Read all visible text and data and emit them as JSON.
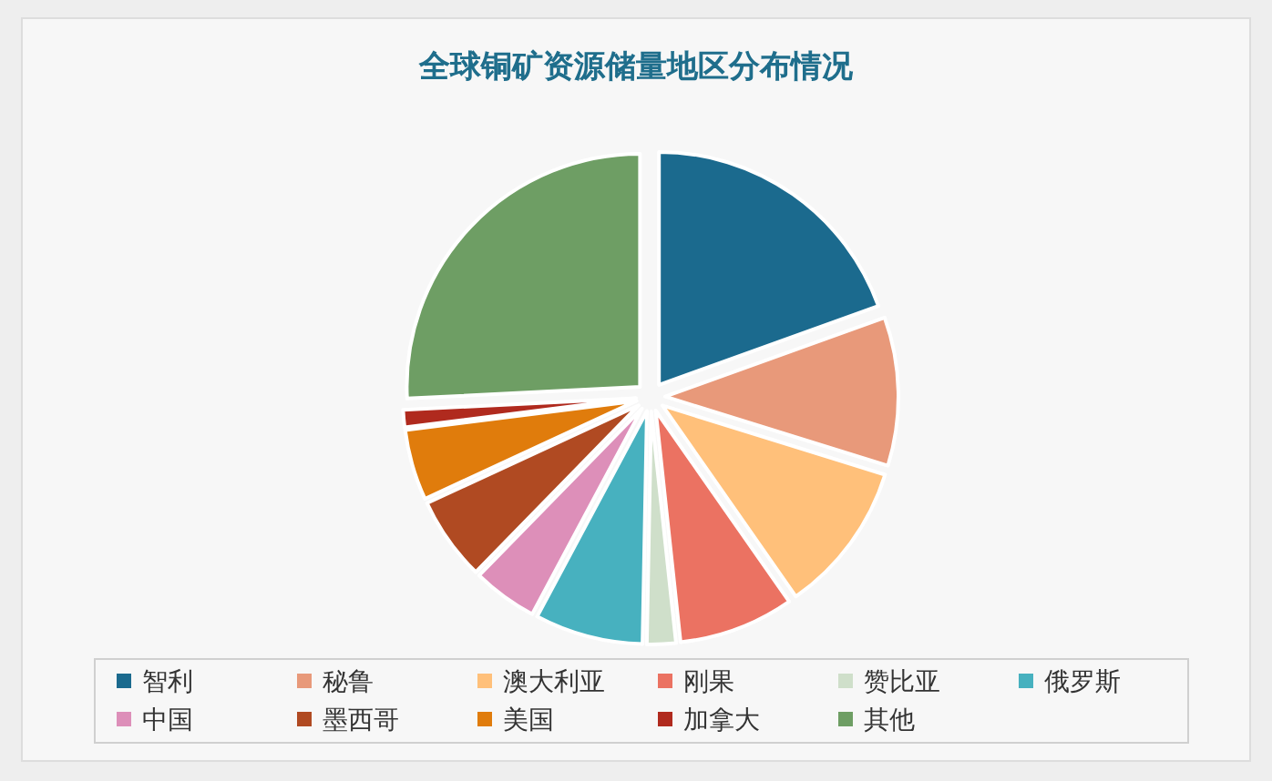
{
  "chart_data": {
    "type": "pie",
    "title": "全球铜矿资源储量地区分布情况",
    "categories": [
      "智利",
      "秘鲁",
      "澳大利亚",
      "刚果",
      "赞比亚",
      "俄罗斯",
      "中国",
      "墨西哥",
      "美国",
      "加拿大",
      "其他"
    ],
    "values": [
      19.5,
      10.3,
      10.5,
      8,
      2,
      7.5,
      4.5,
      5.8,
      4.9,
      1.2,
      25.8
    ],
    "colors": [
      "#1b6a8e",
      "#e8997a",
      "#ffc07a",
      "#eb7262",
      "#cfdfca",
      "#47b1bf",
      "#dd8fb9",
      "#b04a22",
      "#e07c0c",
      "#b02a1e",
      "#6e9e64"
    ],
    "legend": "bottom"
  }
}
